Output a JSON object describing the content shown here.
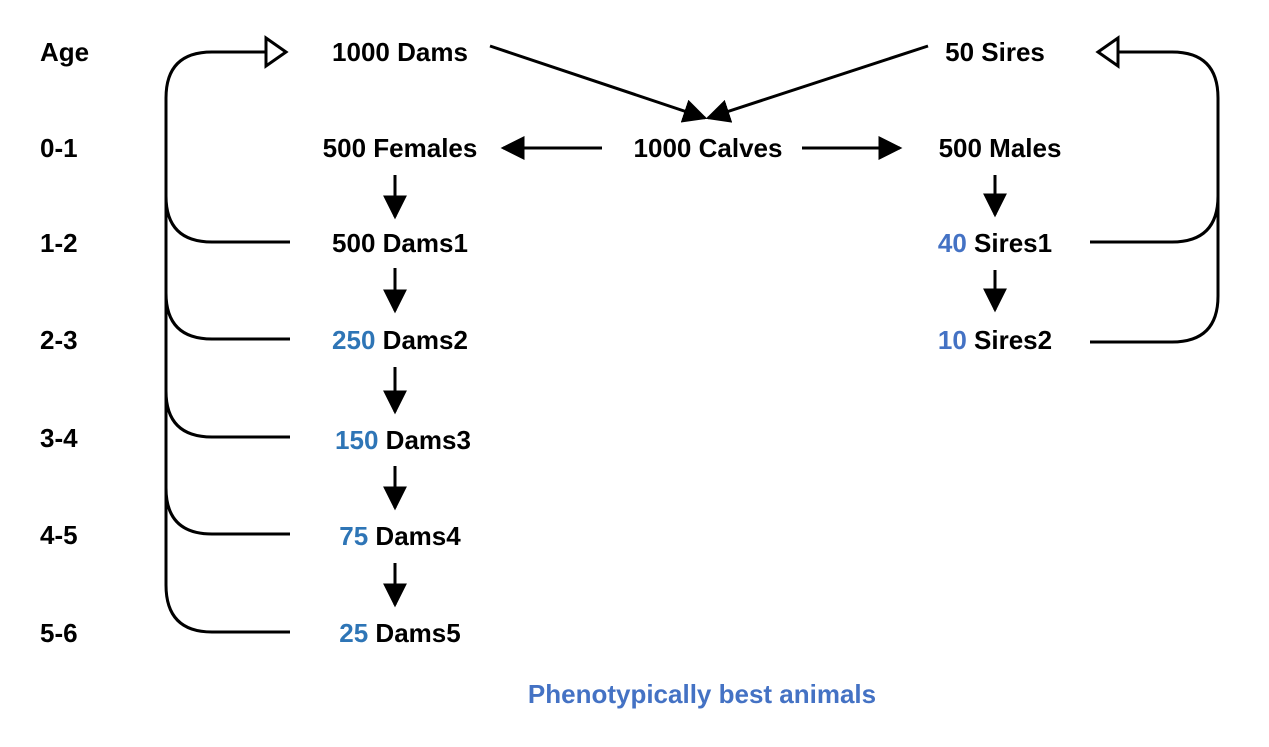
{
  "ages": {
    "header": "Age",
    "rows": [
      "0-1",
      "1-2",
      "2-3",
      "3-4",
      "4-5",
      "5-6"
    ]
  },
  "top": {
    "dams": "1000 Dams",
    "sires": "50 Sires"
  },
  "calves_row": {
    "females": "500 Females",
    "calves": "1000 Calves",
    "males": "500 Males"
  },
  "dam_groups": [
    {
      "num": "",
      "label": "500 Dams1"
    },
    {
      "num": "250",
      "label": " Dams2"
    },
    {
      "num": "150",
      "label": " Dams3"
    },
    {
      "num": "75",
      "label": " Dams4"
    },
    {
      "num": "25",
      "label": " Dams5"
    }
  ],
  "sire_groups": [
    {
      "num": "40",
      "label": " Sires1"
    },
    {
      "num": "10",
      "label": " Sires2"
    }
  ],
  "caption": "Phenotypically best animals",
  "colors": {
    "dam_numbers": "#2e75b6",
    "sire_numbers": "#4472c4",
    "caption": "#4472c4",
    "text": "#000000"
  }
}
